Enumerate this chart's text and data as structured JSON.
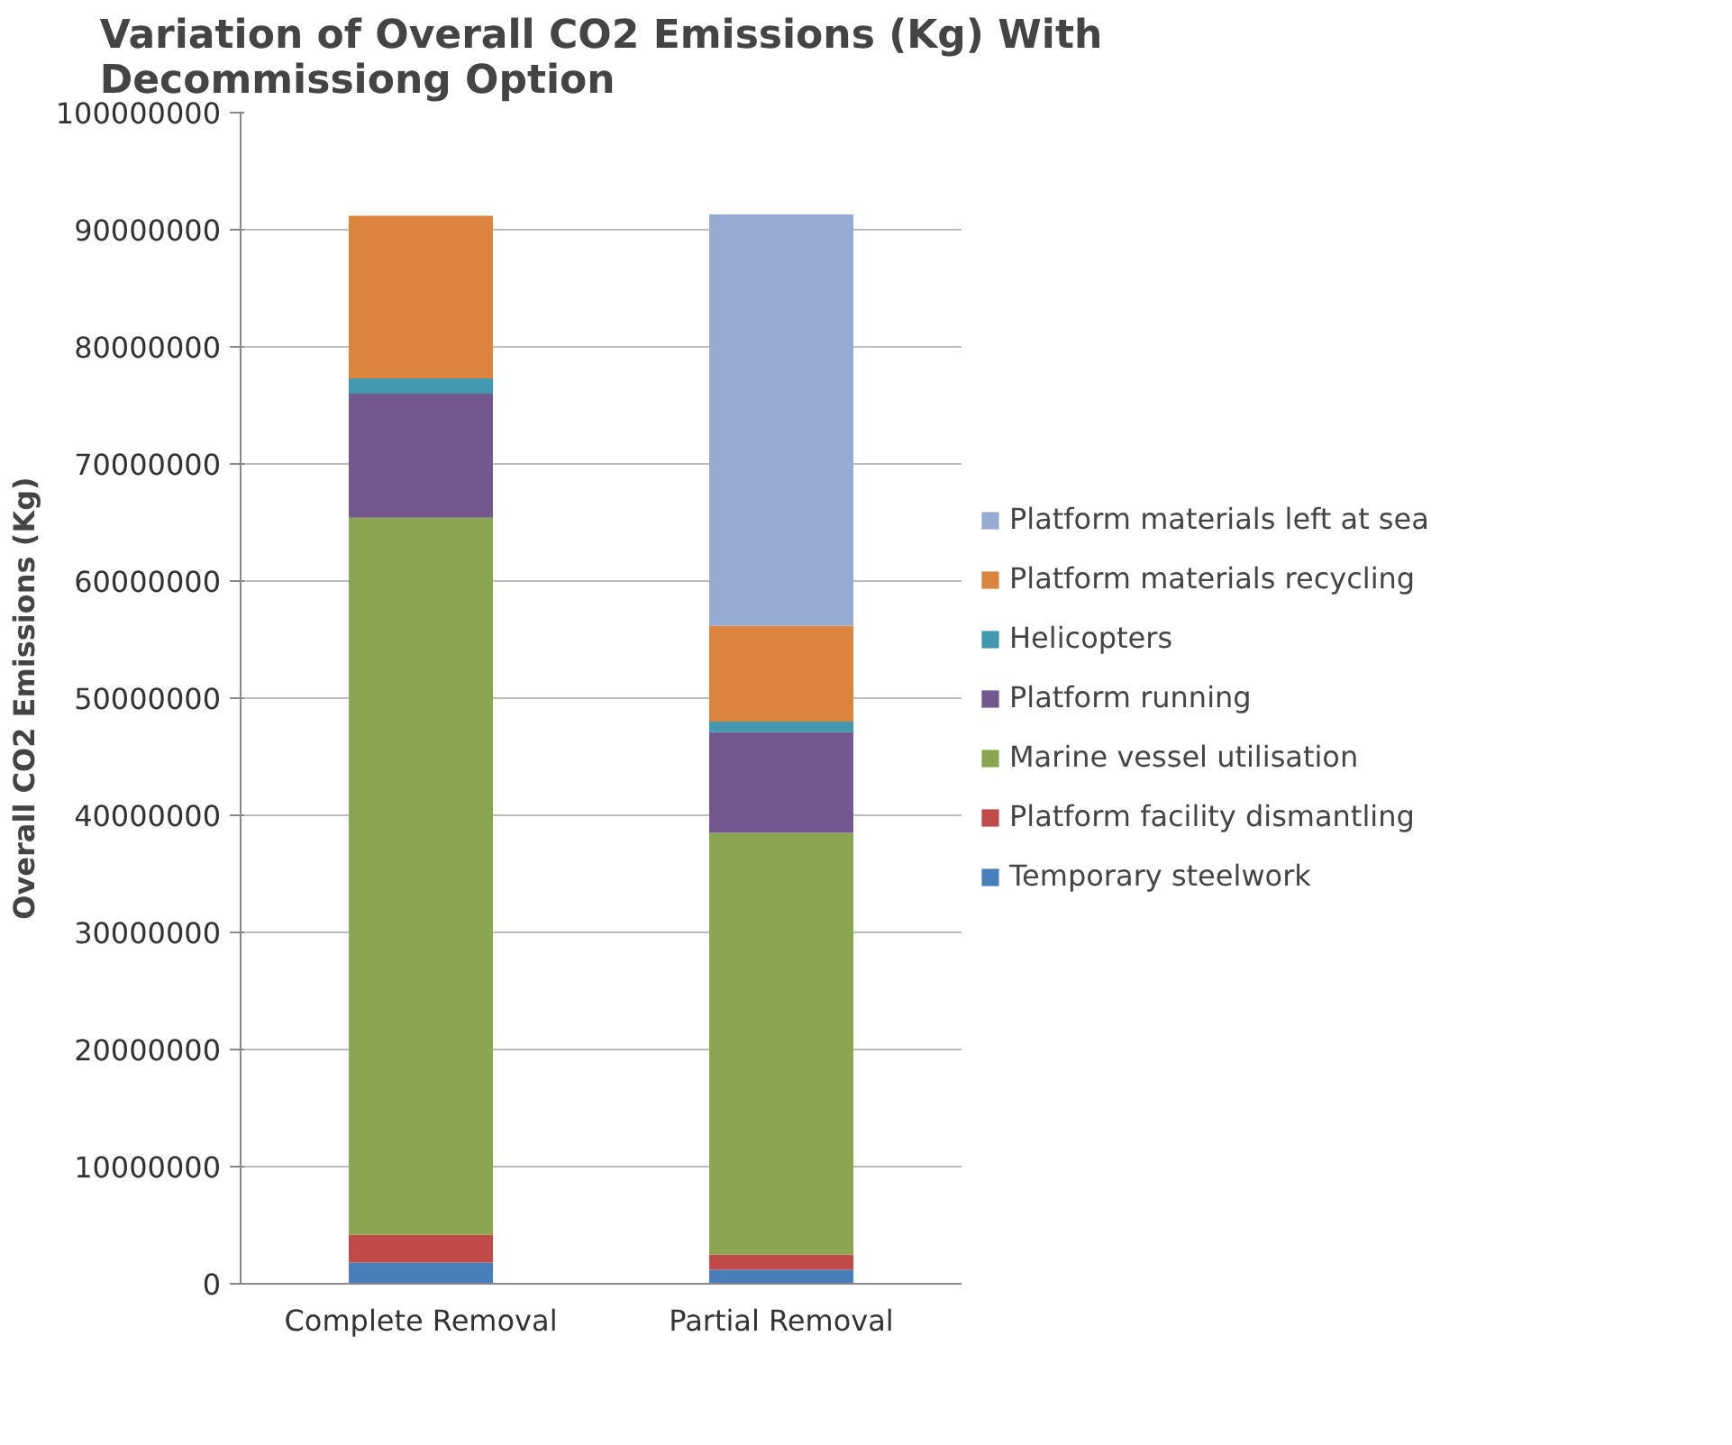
{
  "chart_data": {
    "type": "bar",
    "stacked": true,
    "title": "Variation of Overall CO2 Emissions (Kg) With Decommissiong Option",
    "ylabel": "Overall CO2 Emissions (Kg)",
    "categories": [
      "Complete Removal",
      "Partial Removal"
    ],
    "series": [
      {
        "name": "Temporary steelwork",
        "color": "#4a7ebb",
        "values": [
          1800000,
          1200000
        ]
      },
      {
        "name": "Platform facility dismantling",
        "color": "#be4b48",
        "values": [
          2400000,
          1300000
        ]
      },
      {
        "name": "Marine vessel utilisation",
        "color": "#8ba650",
        "values": [
          61200000,
          36000000
        ]
      },
      {
        "name": "Platform running",
        "color": "#72588e",
        "values": [
          10600000,
          8600000
        ]
      },
      {
        "name": "Helicopters",
        "color": "#4198af",
        "values": [
          1300000,
          900000
        ]
      },
      {
        "name": "Platform materials recycling",
        "color": "#db843d",
        "values": [
          13900000,
          8200000
        ]
      },
      {
        "name": "Platform materials left at sea",
        "color": "#95abd4",
        "values": [
          0,
          35100000
        ]
      }
    ],
    "ylim": [
      0,
      100000000
    ],
    "yticks": [
      0,
      10000000,
      20000000,
      30000000,
      40000000,
      50000000,
      60000000,
      70000000,
      80000000,
      90000000,
      100000000
    ],
    "grid": "y",
    "legend": "right"
  }
}
